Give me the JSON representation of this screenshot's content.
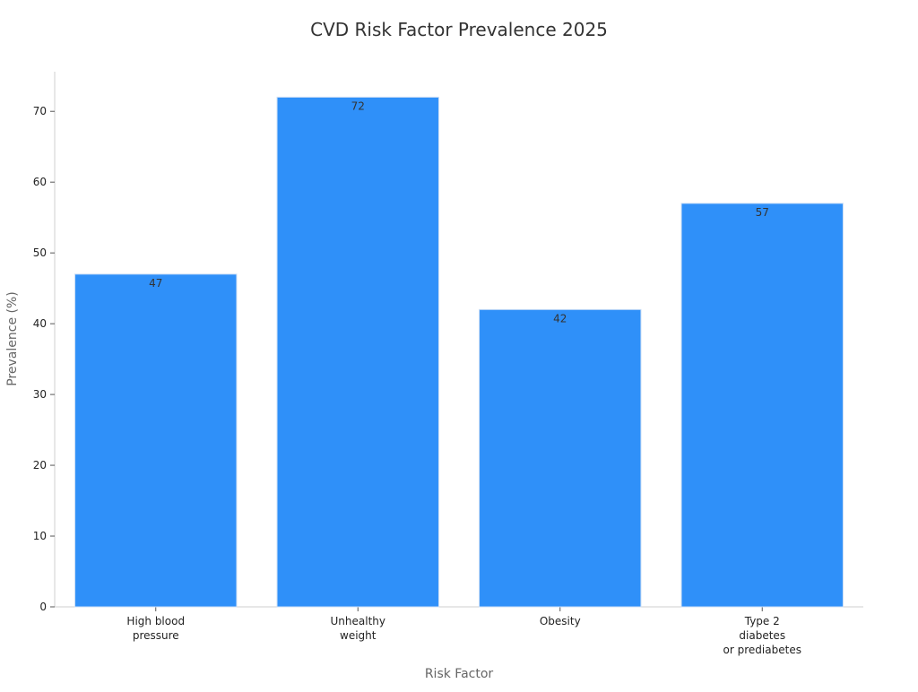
{
  "chart_data": {
    "type": "bar",
    "title": "CVD Risk Factor Prevalence 2025",
    "xlabel": "Risk Factor",
    "ylabel": "Prevalence (%)",
    "categories": [
      [
        "High blood",
        "pressure"
      ],
      [
        "Unhealthy",
        "weight"
      ],
      [
        "Obesity"
      ],
      [
        "Type 2",
        "diabetes",
        "or prediabetes"
      ]
    ],
    "values": [
      47,
      72,
      42,
      57
    ],
    "data_labels": [
      "47",
      "72",
      "42",
      "57"
    ],
    "ylim": [
      0,
      75.6
    ],
    "yticks": [
      0,
      10,
      20,
      30,
      40,
      50,
      60,
      70
    ],
    "grid": false,
    "legend": "none",
    "colors": {
      "bar": "#2f90f9",
      "bar_edge": "#c9ddf6",
      "axis": "#cfcfcf",
      "title": "#333333",
      "axis_label": "#666666",
      "tick_label": "#222222",
      "data_label": "#333333"
    }
  }
}
